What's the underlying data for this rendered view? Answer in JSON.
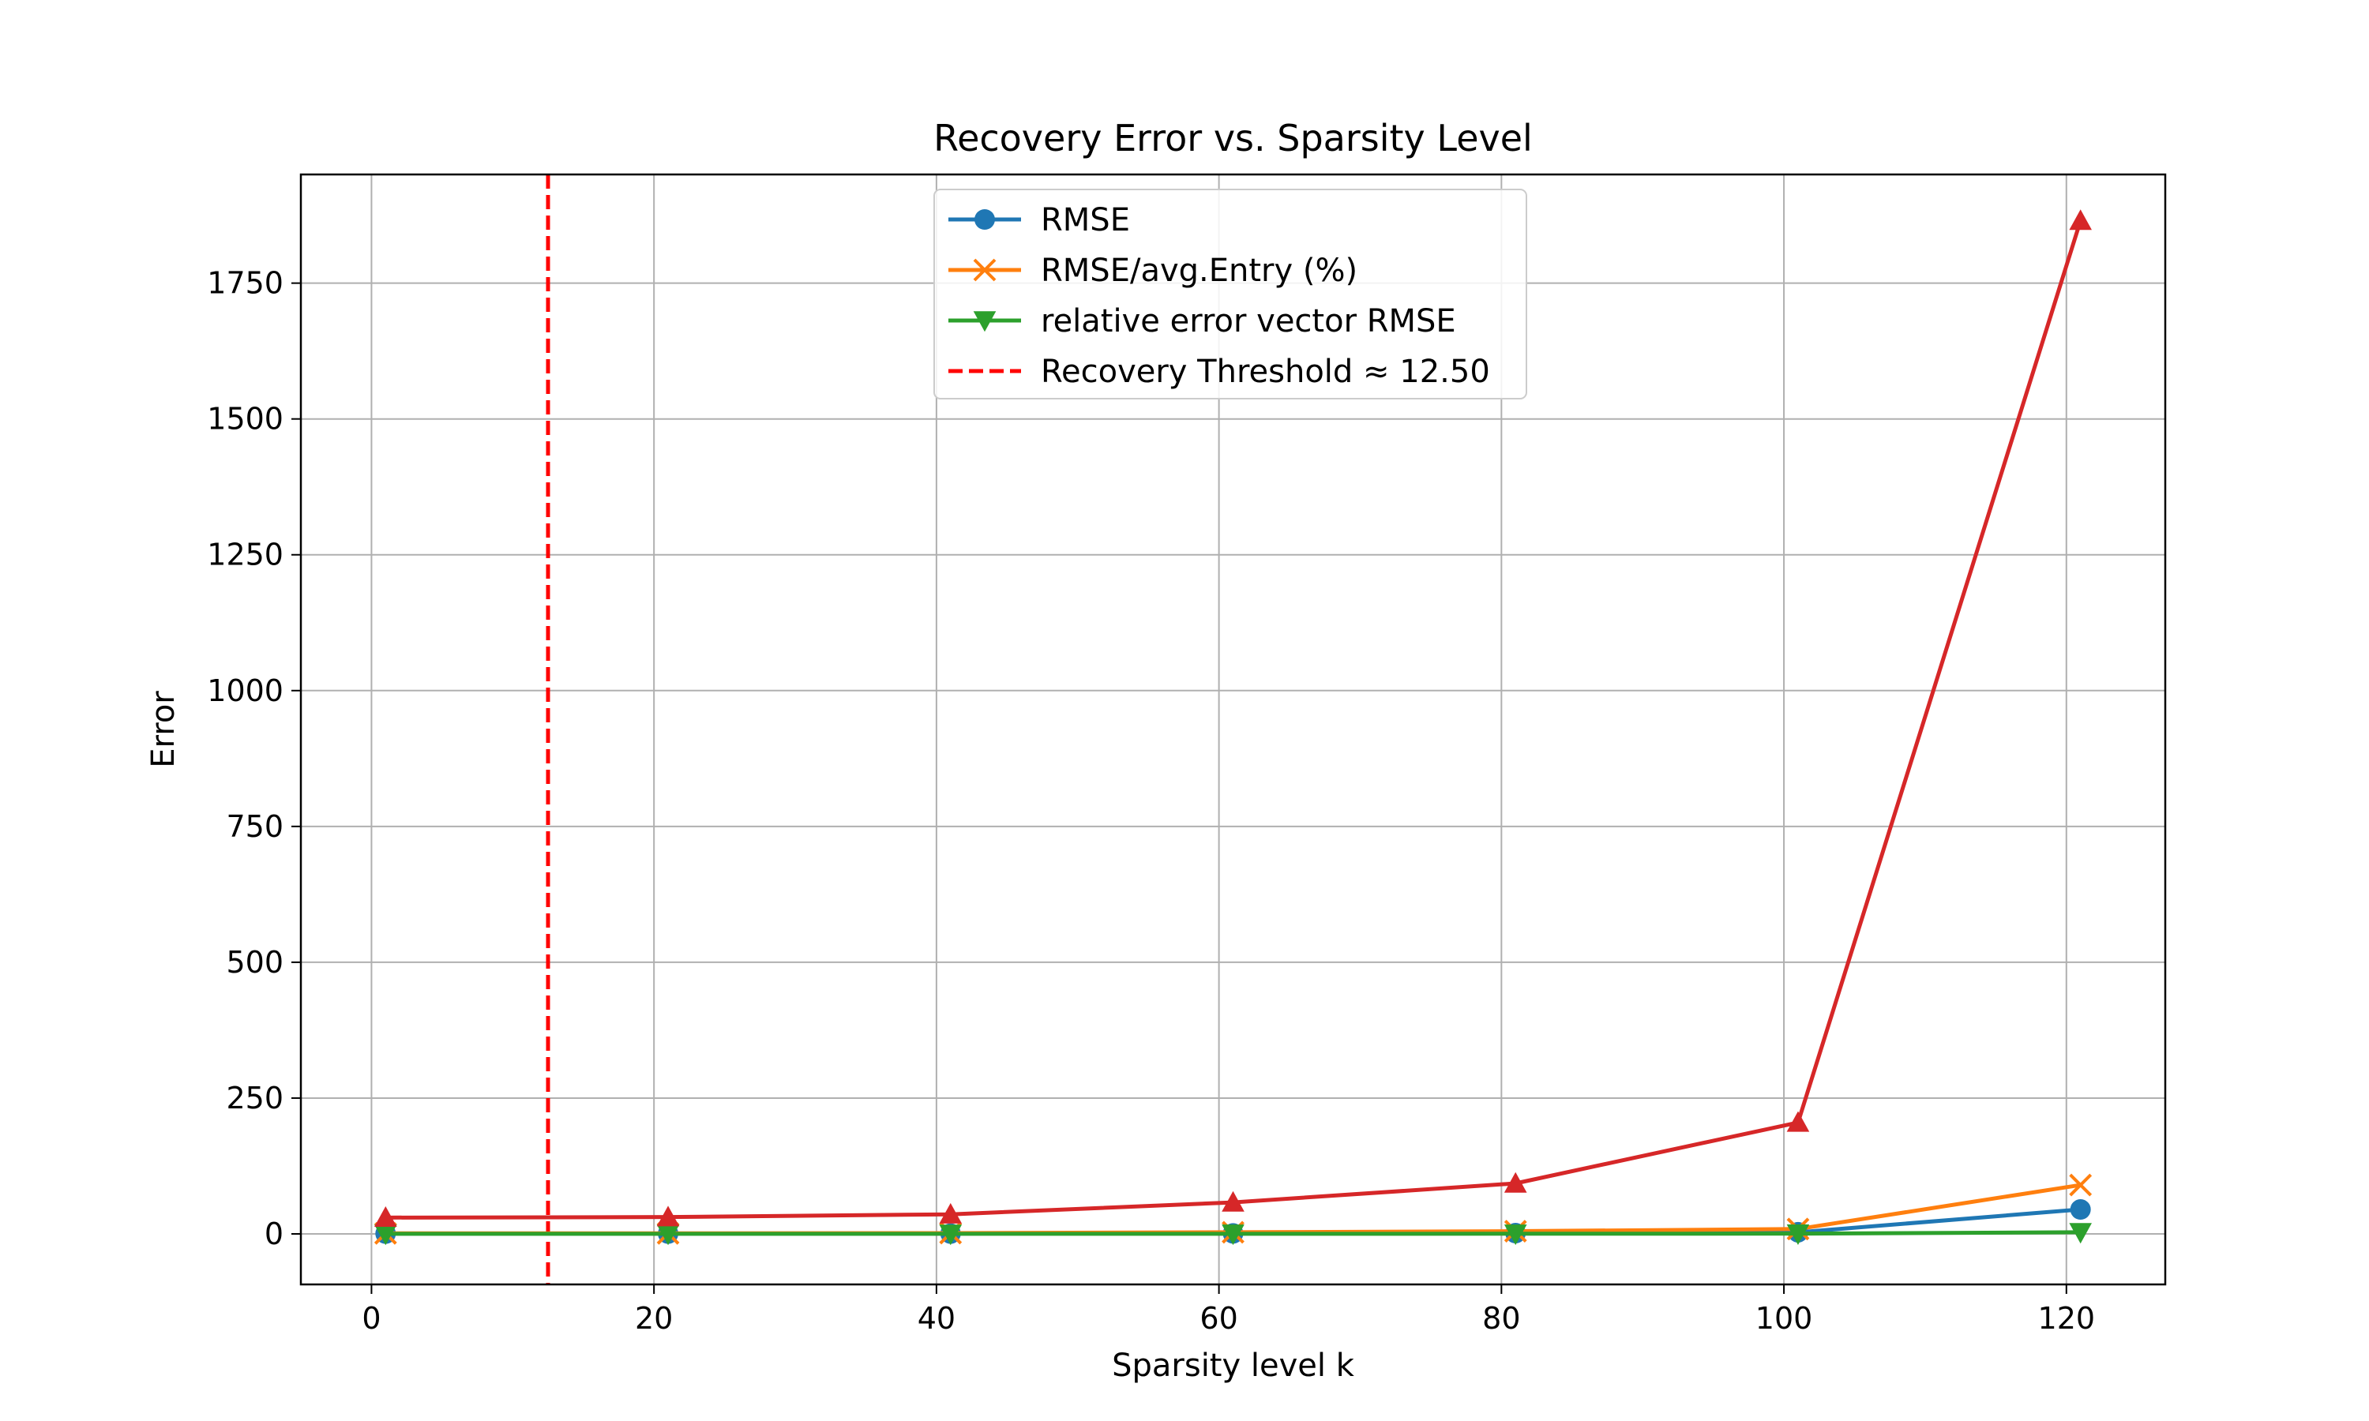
{
  "chart_data": {
    "type": "line",
    "title": "Recovery Error vs. Sparsity Level",
    "xlabel": "Sparsity level k",
    "ylabel": "Error",
    "xlim": [
      -5,
      127
    ],
    "ylim": [
      -93,
      1950
    ],
    "xticks": [
      0,
      20,
      40,
      60,
      80,
      100,
      120
    ],
    "yticks": [
      0,
      250,
      500,
      750,
      1000,
      1250,
      1500,
      1750
    ],
    "grid": true,
    "legend_position": "top-center",
    "x": [
      1,
      21,
      41,
      61,
      81,
      101,
      121
    ],
    "series": [
      {
        "name": "RMSE",
        "color": "#1f77b4",
        "marker": "circle",
        "values": [
          0.5,
          0.5,
          0.6,
          0.9,
          1.4,
          3,
          45
        ]
      },
      {
        "name": "RMSE/avg.Entry (%)",
        "color": "#ff7f0e",
        "marker": "x",
        "values": [
          1,
          1,
          1.5,
          3,
          5,
          9,
          90
        ]
      },
      {
        "name": "relative error vector RMSE",
        "color": "#2ca02c",
        "marker": "triangle-down",
        "values": [
          0.1,
          0.1,
          0.1,
          0.2,
          0.3,
          0.5,
          3
        ]
      },
      {
        "name": "",
        "color": "#d62728",
        "marker": "triangle-up",
        "values": [
          30,
          31,
          36,
          58,
          93,
          205,
          1865
        ]
      }
    ],
    "threshold": {
      "label": "Recovery Threshold ≈ 12.50",
      "value": 12.5,
      "color": "#ff0000",
      "style": "dashed"
    }
  }
}
